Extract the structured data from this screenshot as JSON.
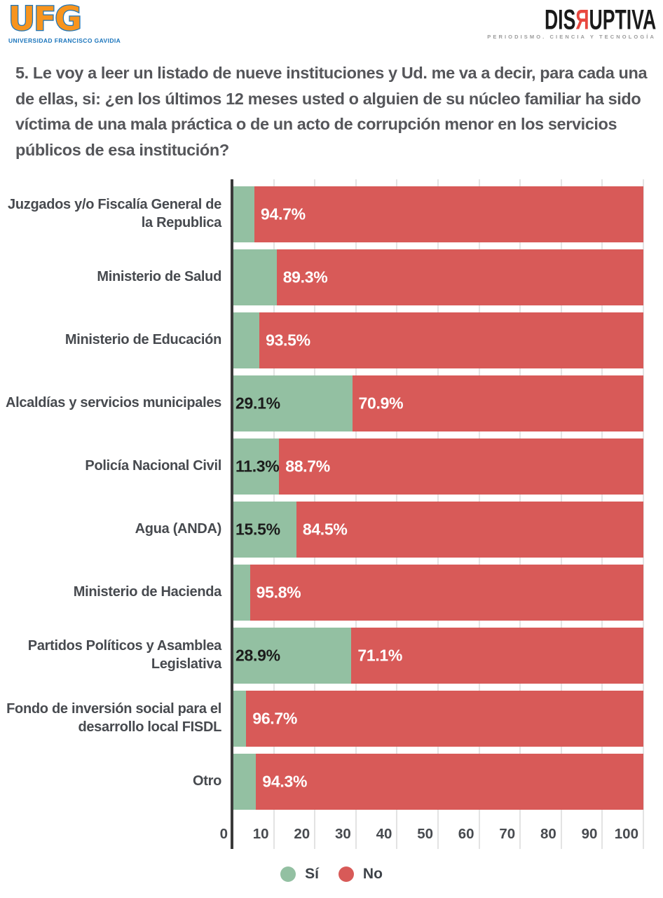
{
  "header": {
    "ufg": {
      "acronym": "UFG",
      "subtext": "UNIVERSIDAD FRANCISCO GAVIDIA",
      "orange": "#F7941E",
      "blue": "#1B75BC"
    },
    "disruptiva": {
      "part1": "DIS",
      "reversed_r": "Я",
      "part2": "UPTIVA",
      "subtext": "PERIODISMO. CIENCIA Y TECNOLOGÍA",
      "red": "#E8483F",
      "black": "#1A1A1A"
    }
  },
  "title": "5. Le voy a leer un listado de nueve instituciones y Ud. me va a decir, para cada una de ellas, si: ¿en los últimos 12 meses usted o alguien de su núcleo familiar ha sido víctima de una mala práctica o de un acto de corrupción menor en los servicios públicos de esa institución?",
  "chart_data": {
    "type": "bar",
    "orientation": "horizontal",
    "stacked": true,
    "grid": true,
    "xlim": [
      0,
      100
    ],
    "x_ticks": [
      "0",
      "10",
      "20",
      "30",
      "40",
      "50",
      "60",
      "70",
      "80",
      "90",
      "100"
    ],
    "categories": [
      "Juzgados y/o Fiscalía General de la Republica",
      "Ministerio de Salud",
      "Ministerio de Educación",
      "Alcaldías y servicios municipales",
      "Policía Nacional Civil",
      "Agua (ANDA)",
      "Ministerio de Hacienda",
      "Partidos Políticos y Asamblea Legislativa",
      "Fondo de inversión social para el desarrollo local FISDL",
      "Otro"
    ],
    "series": [
      {
        "name": "Sí",
        "color": "#93C0A2",
        "values": [
          5.3,
          10.7,
          6.5,
          29.1,
          11.3,
          15.5,
          4.2,
          28.9,
          3.3,
          5.7
        ]
      },
      {
        "name": "No",
        "color": "#D85A58",
        "values": [
          94.7,
          89.3,
          93.5,
          70.9,
          88.7,
          84.5,
          95.8,
          71.1,
          96.7,
          94.3
        ]
      }
    ],
    "bar_labels": [
      {
        "si": "",
        "no": "94.7%"
      },
      {
        "si": "",
        "no": "89.3%"
      },
      {
        "si": "",
        "no": "93.5%"
      },
      {
        "si": "29.1%",
        "no": "70.9%"
      },
      {
        "si": "11.3%",
        "no": "88.7%"
      },
      {
        "si": "15.5%",
        "no": "84.5%"
      },
      {
        "si": "",
        "no": "95.8%"
      },
      {
        "si": "28.9%",
        "no": "71.1%"
      },
      {
        "si": "",
        "no": "96.7%"
      },
      {
        "si": "",
        "no": "94.3%"
      }
    ],
    "legend": [
      {
        "label": "Sí",
        "color": "#93C0A2"
      },
      {
        "label": "No",
        "color": "#D85A58"
      }
    ],
    "legend_position": "bottom-center",
    "colors": {
      "axis_line": "#3A3A3A",
      "gridline": "#E3E3E3",
      "value_label_dark": "#1C1C1C",
      "value_label_light": "#FFFFFF"
    }
  }
}
